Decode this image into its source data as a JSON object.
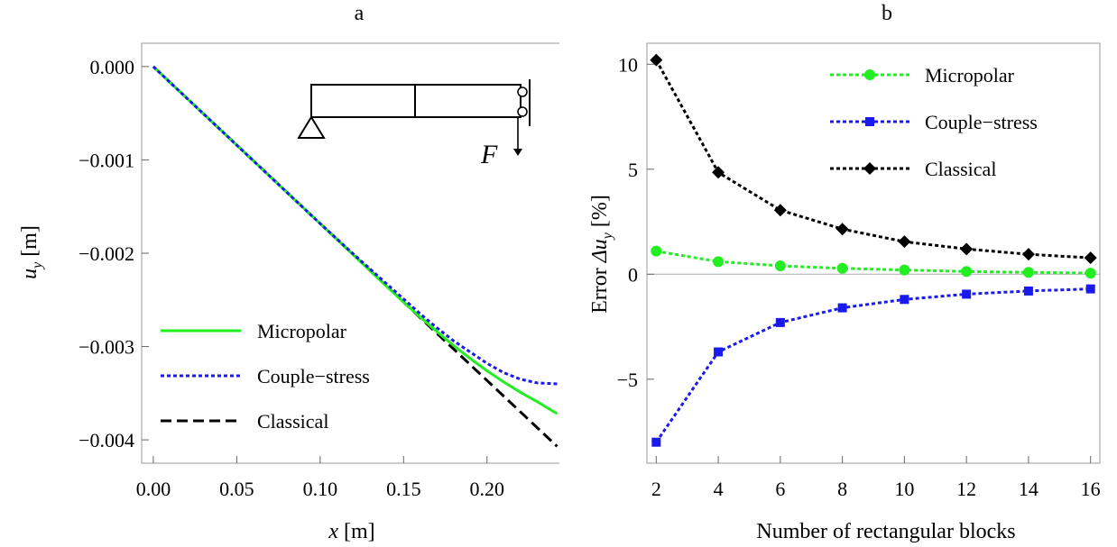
{
  "chart_data": [
    {
      "type": "line",
      "title": "a",
      "xlabel": "x [m]",
      "ylabel": "u_y [m]",
      "xlim": [
        -0.007,
        0.245
      ],
      "ylim": [
        -0.00425,
        0.00025
      ],
      "xticks": [
        0.0,
        0.05,
        0.1,
        0.15,
        0.2
      ],
      "xtick_labels": [
        "0.00",
        "0.05",
        "0.10",
        "0.15",
        "0.20"
      ],
      "yticks": [
        0.0,
        -0.001,
        -0.002,
        -0.003,
        -0.004
      ],
      "ytick_labels": [
        "0.000",
        "−0.001",
        "−0.002",
        "−0.003",
        "−0.004"
      ],
      "legend_position": "bottom-left",
      "series": [
        {
          "name": "Micropolar",
          "color": "#22ee22",
          "style": "solid",
          "x": [
            0,
            0.02,
            0.04,
            0.06,
            0.08,
            0.1,
            0.12,
            0.14,
            0.15,
            0.16,
            0.17,
            0.18,
            0.19,
            0.2,
            0.21,
            0.22,
            0.23,
            0.242
          ],
          "y": [
            0,
            -0.000337,
            -0.000673,
            -0.00101,
            -0.001347,
            -0.001683,
            -0.00202,
            -0.002357,
            -0.002525,
            -0.002685,
            -0.00284,
            -0.00299,
            -0.00313,
            -0.00326,
            -0.00338,
            -0.00349,
            -0.00359,
            -0.00372
          ]
        },
        {
          "name": "Couple−stress",
          "color": "#1a1aee",
          "style": "dotted",
          "x": [
            0,
            0.02,
            0.04,
            0.06,
            0.08,
            0.1,
            0.12,
            0.14,
            0.15,
            0.16,
            0.17,
            0.18,
            0.19,
            0.2,
            0.21,
            0.22,
            0.23,
            0.242
          ],
          "y": [
            0,
            -0.000337,
            -0.000673,
            -0.00101,
            -0.001347,
            -0.001683,
            -0.00201,
            -0.00233,
            -0.00249,
            -0.00265,
            -0.0028,
            -0.00294,
            -0.00306,
            -0.00318,
            -0.00328,
            -0.00335,
            -0.00339,
            -0.0034
          ]
        },
        {
          "name": "Classical",
          "color": "#000000",
          "style": "dashed",
          "x": [
            0,
            0.242
          ],
          "y": [
            0,
            -0.00407
          ]
        }
      ],
      "inset": {
        "label": "F"
      }
    },
    {
      "type": "line",
      "title": "b",
      "xlabel": "Number of rectangular blocks",
      "ylabel": "Error  Δu_y [%]",
      "xlim": [
        1.7,
        16.3
      ],
      "ylim": [
        -9.0,
        11.0
      ],
      "xticks": [
        2,
        4,
        6,
        8,
        10,
        12,
        14,
        16
      ],
      "xtick_labels": [
        "2",
        "4",
        "6",
        "8",
        "10",
        "12",
        "14",
        "16"
      ],
      "yticks": [
        -5,
        0,
        5,
        10
      ],
      "ytick_labels": [
        "−5",
        "0",
        "5",
        "10"
      ],
      "legend_position": "top-right",
      "series": [
        {
          "name": "Micropolar",
          "color": "#22ee22",
          "marker": "circle",
          "x": [
            2,
            4,
            6,
            8,
            10,
            12,
            14,
            16
          ],
          "y": [
            1.1,
            0.6,
            0.4,
            0.28,
            0.2,
            0.13,
            0.09,
            0.05
          ]
        },
        {
          "name": "Couple−stress",
          "color": "#1a1aee",
          "marker": "square",
          "x": [
            2,
            4,
            6,
            8,
            10,
            12,
            14,
            16
          ],
          "y": [
            -8.0,
            -3.7,
            -2.3,
            -1.6,
            -1.2,
            -0.95,
            -0.8,
            -0.7
          ]
        },
        {
          "name": "Classical",
          "color": "#000000",
          "marker": "diamond",
          "x": [
            2,
            4,
            6,
            8,
            10,
            12,
            14,
            16
          ],
          "y": [
            10.2,
            4.85,
            3.05,
            2.15,
            1.55,
            1.2,
            0.95,
            0.78
          ]
        }
      ]
    }
  ]
}
